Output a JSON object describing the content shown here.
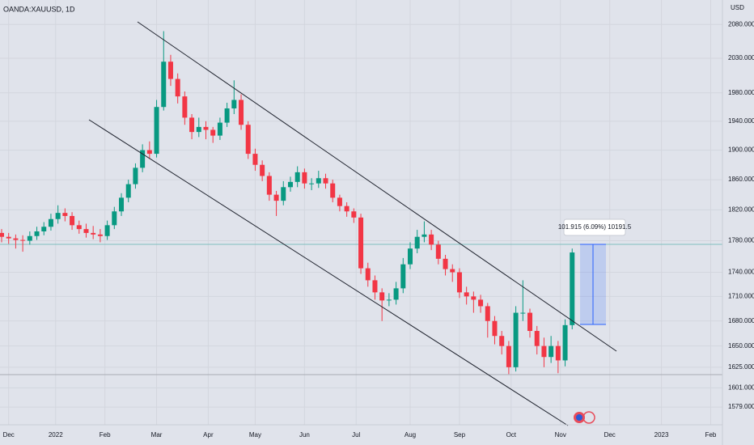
{
  "chart_data": {
    "type": "candlestick",
    "title": "OANDA:XAUUSD, 1D",
    "y_unit": "USD",
    "log_scale": true,
    "grid": true,
    "up_color": "#089981",
    "down_color": "#f23645",
    "annotations": [
      "101.915 (6.09%) 10191.5"
    ],
    "ylim": [
      1559,
      2117
    ],
    "yticks": [
      {
        "value": 2080,
        "label": "2080.000"
      },
      {
        "value": 2030,
        "label": "2030.000"
      },
      {
        "value": 1980,
        "label": "1980.000"
      },
      {
        "value": 1940,
        "label": "1940.000"
      },
      {
        "value": 1900,
        "label": "1900.000"
      },
      {
        "value": 1860,
        "label": "1860.000"
      },
      {
        "value": 1820,
        "label": "1820.000"
      },
      {
        "value": 1780,
        "label": "1780.000"
      },
      {
        "value": 1740,
        "label": "1740.000"
      },
      {
        "value": 1710,
        "label": "1710.000"
      },
      {
        "value": 1680,
        "label": "1680.000"
      },
      {
        "value": 1650,
        "label": "1650.000"
      },
      {
        "value": 1625,
        "label": "1625.000"
      },
      {
        "value": 1601,
        "label": "1601.000"
      },
      {
        "value": 1579,
        "label": "1579.000"
      }
    ],
    "xlim": [
      0,
      307
    ],
    "xticks": [
      {
        "value": 3,
        "label": "Dec"
      },
      {
        "value": 23,
        "label": "2022"
      },
      {
        "value": 44,
        "label": "Feb"
      },
      {
        "value": 66,
        "label": "Mar"
      },
      {
        "value": 88,
        "label": "Apr"
      },
      {
        "value": 108,
        "label": "May"
      },
      {
        "value": 129,
        "label": "Jun"
      },
      {
        "value": 151,
        "label": "Jul"
      },
      {
        "value": 174,
        "label": "Aug"
      },
      {
        "value": 195,
        "label": "Sep"
      },
      {
        "value": 217,
        "label": "Oct"
      },
      {
        "value": 238,
        "label": "Nov"
      },
      {
        "value": 259,
        "label": "Dec"
      },
      {
        "value": 281,
        "label": "2023"
      },
      {
        "value": 302,
        "label": "Feb"
      }
    ],
    "x": [
      0,
      3,
      6,
      9,
      12,
      15,
      18,
      21,
      24,
      27,
      30,
      33,
      36,
      39,
      42,
      45,
      48,
      51,
      54,
      57,
      60,
      63,
      66,
      69,
      72,
      75,
      78,
      81,
      84,
      87,
      90,
      93,
      96,
      99,
      102,
      105,
      108,
      111,
      114,
      117,
      120,
      123,
      126,
      129,
      132,
      135,
      138,
      141,
      144,
      147,
      150,
      153,
      156,
      159,
      162,
      165,
      168,
      171,
      174,
      177,
      180,
      183,
      186,
      189,
      192,
      195,
      198,
      201,
      204,
      207,
      210,
      213,
      216,
      219,
      222,
      225,
      228,
      231,
      234,
      237,
      240,
      243
    ],
    "candles": [
      [
        1790,
        1795,
        1778,
        1785
      ],
      [
        1785,
        1790,
        1776,
        1783
      ],
      [
        1783,
        1788,
        1770,
        1781
      ],
      [
        1781,
        1787,
        1766,
        1780
      ],
      [
        1780,
        1792,
        1775,
        1786
      ],
      [
        1786,
        1798,
        1781,
        1792
      ],
      [
        1792,
        1804,
        1787,
        1798
      ],
      [
        1798,
        1815,
        1793,
        1808
      ],
      [
        1808,
        1826,
        1802,
        1816
      ],
      [
        1816,
        1822,
        1805,
        1812
      ],
      [
        1812,
        1817,
        1794,
        1800
      ],
      [
        1800,
        1806,
        1789,
        1795
      ],
      [
        1795,
        1802,
        1784,
        1790
      ],
      [
        1790,
        1799,
        1782,
        1788
      ],
      [
        1788,
        1795,
        1778,
        1786
      ],
      [
        1786,
        1806,
        1781,
        1800
      ],
      [
        1800,
        1824,
        1795,
        1818
      ],
      [
        1818,
        1842,
        1812,
        1836
      ],
      [
        1836,
        1860,
        1830,
        1854
      ],
      [
        1854,
        1882,
        1848,
        1876
      ],
      [
        1876,
        1908,
        1870,
        1900
      ],
      [
        1900,
        1912,
        1888,
        1895
      ],
      [
        1895,
        1970,
        1890,
        1960
      ],
      [
        1960,
        2070,
        1955,
        2025
      ],
      [
        2025,
        2035,
        1990,
        2000
      ],
      [
        2000,
        2008,
        1965,
        1975
      ],
      [
        1975,
        1982,
        1935,
        1945
      ],
      [
        1945,
        1950,
        1915,
        1925
      ],
      [
        1925,
        1945,
        1918,
        1932
      ],
      [
        1932,
        1940,
        1915,
        1928
      ],
      [
        1928,
        1932,
        1910,
        1920
      ],
      [
        1920,
        1945,
        1914,
        1938
      ],
      [
        1938,
        1966,
        1932,
        1958
      ],
      [
        1958,
        1998,
        1950,
        1970
      ],
      [
        1970,
        1978,
        1928,
        1935
      ],
      [
        1935,
        1940,
        1888,
        1895
      ],
      [
        1895,
        1902,
        1872,
        1880
      ],
      [
        1880,
        1886,
        1858,
        1865
      ],
      [
        1865,
        1870,
        1832,
        1840
      ],
      [
        1840,
        1845,
        1812,
        1832
      ],
      [
        1832,
        1858,
        1826,
        1850
      ],
      [
        1850,
        1864,
        1844,
        1857
      ],
      [
        1857,
        1878,
        1850,
        1870
      ],
      [
        1870,
        1875,
        1848,
        1855
      ],
      [
        1855,
        1862,
        1846,
        1855
      ],
      [
        1855,
        1872,
        1849,
        1862
      ],
      [
        1862,
        1868,
        1848,
        1855
      ],
      [
        1855,
        1860,
        1830,
        1836
      ],
      [
        1836,
        1840,
        1818,
        1825
      ],
      [
        1825,
        1830,
        1811,
        1818
      ],
      [
        1818,
        1822,
        1803,
        1810
      ],
      [
        1810,
        1815,
        1738,
        1745
      ],
      [
        1745,
        1752,
        1722,
        1730
      ],
      [
        1730,
        1736,
        1706,
        1715
      ],
      [
        1715,
        1720,
        1680,
        1705
      ],
      [
        1705,
        1714,
        1698,
        1706
      ],
      [
        1706,
        1728,
        1700,
        1720
      ],
      [
        1720,
        1758,
        1714,
        1750
      ],
      [
        1750,
        1778,
        1744,
        1770
      ],
      [
        1770,
        1794,
        1764,
        1785
      ],
      [
        1785,
        1805,
        1778,
        1788
      ],
      [
        1788,
        1794,
        1768,
        1775
      ],
      [
        1775,
        1780,
        1750,
        1757
      ],
      [
        1757,
        1762,
        1736,
        1744
      ],
      [
        1744,
        1750,
        1728,
        1740
      ],
      [
        1740,
        1745,
        1708,
        1715
      ],
      [
        1715,
        1722,
        1700,
        1710
      ],
      [
        1710,
        1716,
        1690,
        1706
      ],
      [
        1706,
        1712,
        1690,
        1698
      ],
      [
        1698,
        1702,
        1660,
        1680
      ],
      [
        1680,
        1686,
        1652,
        1662
      ],
      [
        1662,
        1668,
        1640,
        1650
      ],
      [
        1650,
        1656,
        1617,
        1625
      ],
      [
        1625,
        1698,
        1620,
        1690
      ],
      [
        1690,
        1730,
        1680,
        1690
      ],
      [
        1690,
        1695,
        1660,
        1668
      ],
      [
        1668,
        1674,
        1640,
        1650
      ],
      [
        1650,
        1660,
        1625,
        1637
      ],
      [
        1637,
        1662,
        1630,
        1650
      ],
      [
        1650,
        1656,
        1618,
        1633
      ],
      [
        1633,
        1682,
        1626,
        1675
      ],
      [
        1675,
        1770,
        1670,
        1765
      ]
    ]
  }
}
